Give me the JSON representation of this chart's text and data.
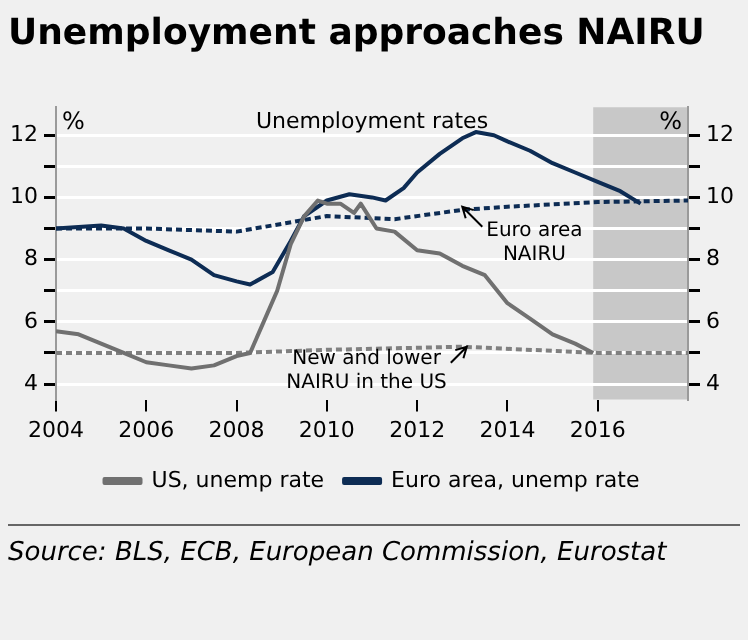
{
  "chart_data": {
    "type": "line",
    "title": "Unemployment approaches NAIRU",
    "ylabel": "%",
    "y2label": "%",
    "xlim": [
      2004,
      2018
    ],
    "xticks": [
      2004,
      2006,
      2008,
      2010,
      2012,
      2014,
      2016
    ],
    "ylim": [
      3.5,
      12.9
    ],
    "yticks": [
      4,
      {
        "value": 5,
        "label": null
      },
      6,
      {
        "value": 7,
        "label": null
      },
      8,
      {
        "value": 9,
        "label": null
      },
      10,
      {
        "value": 11,
        "label": null
      },
      12
    ],
    "y2lim": [
      3.5,
      12.9
    ],
    "y2ticks": [
      4,
      {
        "value": 5,
        "label": null
      },
      6,
      {
        "value": 7,
        "label": null
      },
      8,
      {
        "value": 9,
        "label": null
      },
      10,
      {
        "value": 11,
        "label": null
      },
      12
    ],
    "grid": "y",
    "legend": "bottom",
    "marker": "none",
    "bands": [
      {
        "axis": "x",
        "from": 2015.9,
        "to": 2018,
        "color": "#c8c8c8"
      }
    ],
    "series": [
      {
        "name": "US, unemp rate",
        "color": "#707070",
        "line_style": "solid",
        "x": [
          2004,
          2004.5,
          2005,
          2005.5,
          2006,
          2006.5,
          2007,
          2007.5,
          2008,
          2008.3,
          2008.6,
          2008.9,
          2009.2,
          2009.5,
          2009.8,
          2010,
          2010.3,
          2010.6,
          2010.75,
          2011.1,
          2011.5,
          2012,
          2012.5,
          2013,
          2013.5,
          2014,
          2014.5,
          2015,
          2015.5,
          2015.9
        ],
        "values": [
          5.7,
          5.6,
          5.3,
          5.0,
          4.7,
          4.6,
          4.5,
          4.6,
          4.9,
          5.0,
          6.0,
          7.0,
          8.5,
          9.4,
          9.9,
          9.8,
          9.8,
          9.5,
          9.8,
          9.0,
          8.9,
          8.3,
          8.2,
          7.8,
          7.5,
          6.6,
          6.1,
          5.6,
          5.3,
          5.0
        ]
      },
      {
        "name": "Euro area, unemp rate",
        "color": "#0d2c54",
        "line_style": "solid",
        "x": [
          2004,
          2005,
          2005.5,
          2006,
          2006.5,
          2007,
          2007.5,
          2008,
          2008.3,
          2008.8,
          2009.2,
          2009.5,
          2010,
          2010.5,
          2011,
          2011.3,
          2011.7,
          2012,
          2012.5,
          2013,
          2013.3,
          2013.7,
          2014,
          2014.5,
          2015,
          2015.5,
          2016,
          2016.5,
          2016.95
        ],
        "values": [
          9.0,
          9.1,
          9.0,
          8.6,
          8.3,
          8.0,
          7.5,
          7.3,
          7.2,
          7.6,
          8.6,
          9.4,
          9.9,
          10.1,
          10.0,
          9.9,
          10.3,
          10.8,
          11.4,
          11.9,
          12.1,
          12.0,
          11.8,
          11.5,
          11.1,
          10.8,
          10.5,
          10.2,
          9.8
        ]
      },
      {
        "color": "#0d2c54",
        "line_style": "dashed",
        "x": [
          2004,
          2006,
          2008,
          2010,
          2011.5,
          2013,
          2014,
          2016,
          2018
        ],
        "values": [
          9.0,
          9.0,
          8.9,
          9.4,
          9.3,
          9.6,
          9.7,
          9.85,
          9.9
        ]
      },
      {
        "color": "#808080",
        "line_style": "dashed",
        "x": [
          2004,
          2008,
          2010,
          2013,
          2016,
          2018
        ],
        "values": [
          5.0,
          5.0,
          5.1,
          5.2,
          5.0,
          5.0
        ]
      }
    ],
    "annotations": [
      "Unemployment rates",
      {
        "text": "Euro area\nNAIRU",
        "x": 2013,
        "y": 9.7
      },
      {
        "text": "New and lower\nNAIRU in the US",
        "x": 2013.1,
        "y": 5.2
      },
      "Source: BLS, ECB, European Commission, Eurostat"
    ]
  }
}
